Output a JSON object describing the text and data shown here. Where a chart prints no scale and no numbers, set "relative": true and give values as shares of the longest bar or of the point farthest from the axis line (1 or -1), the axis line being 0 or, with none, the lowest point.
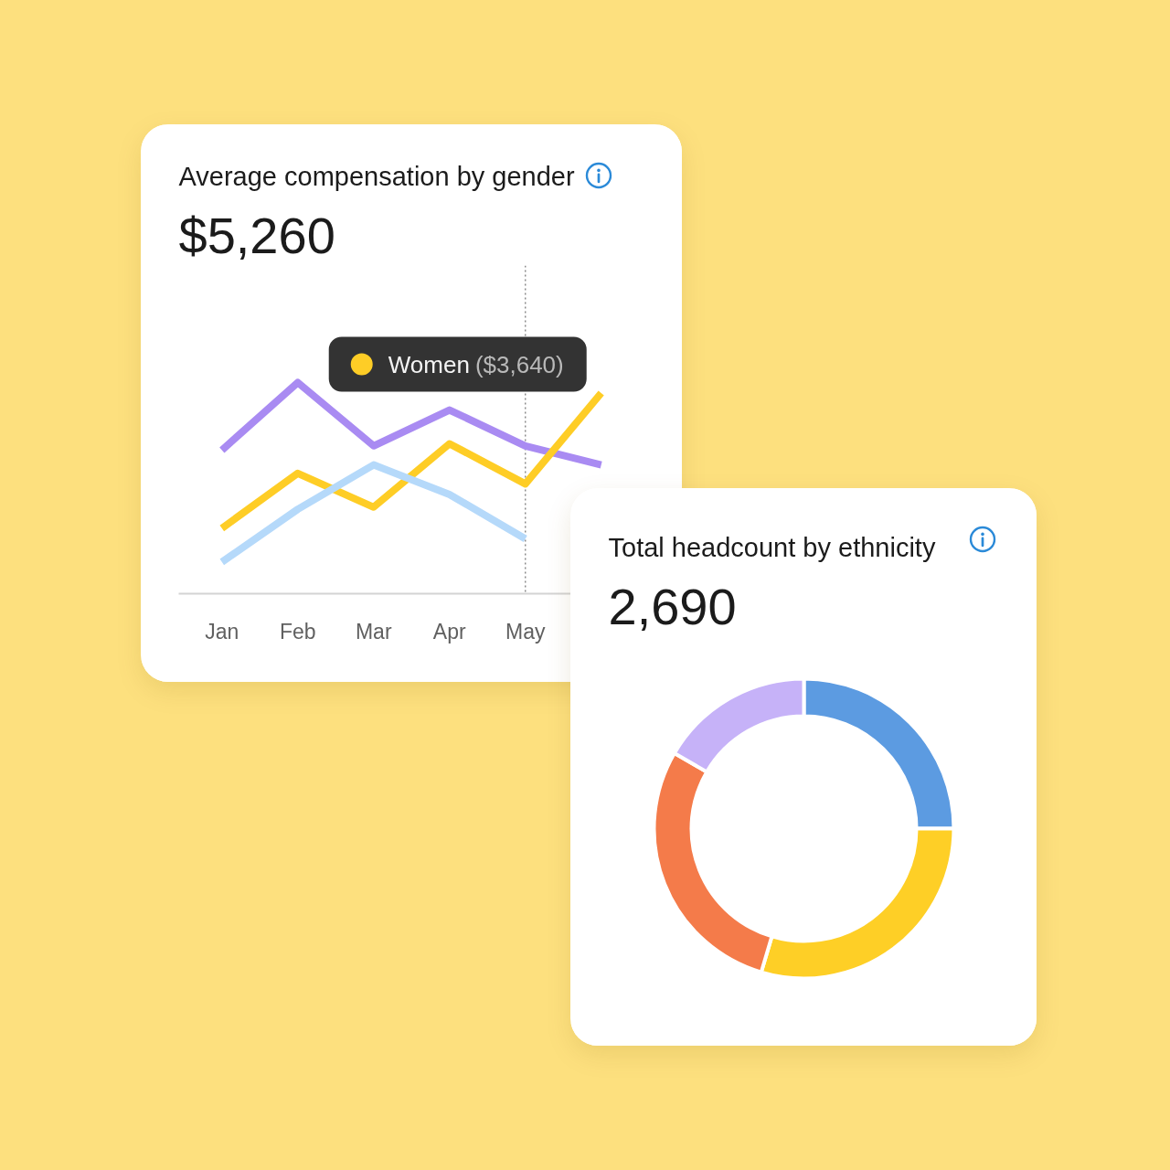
{
  "chart_data": [
    {
      "type": "line",
      "title": "Average compensation by gender",
      "subtitle": "$5,260",
      "categories": [
        "Jan",
        "Feb",
        "Mar",
        "Apr",
        "May",
        null
      ],
      "relative": true,
      "tick_labels": "x",
      "series": [
        {
          "color": "#a98bf2",
          "values": [
            0.68,
            1.0,
            0.7,
            0.87,
            0.7,
            0.61
          ]
        },
        {
          "name": "Women",
          "color": "#fecd26",
          "values": [
            0.31,
            0.57,
            0.41,
            0.71,
            0.52,
            0.95
          ]
        },
        {
          "color": "#b5d9fa",
          "values": [
            0.15,
            0.4,
            0.61,
            0.47,
            0.26,
            null
          ]
        }
      ],
      "ref_lines": [
        {
          "axis": "x",
          "value": "May",
          "label": "($3,640)",
          "color": "#8a8a8a",
          "line_style": "dotted"
        }
      ]
    },
    {
      "type": "donut",
      "title": "Total headcount by ethnicity",
      "subtitle": "2,690",
      "categories": [
        null,
        null,
        null,
        null
      ],
      "values": [
        25,
        29.6,
        28.8,
        16.6
      ],
      "colors": [
        "#5c9be1",
        "#fecf26",
        "#f47b4a",
        "#c6b2f8"
      ]
    }
  ]
}
